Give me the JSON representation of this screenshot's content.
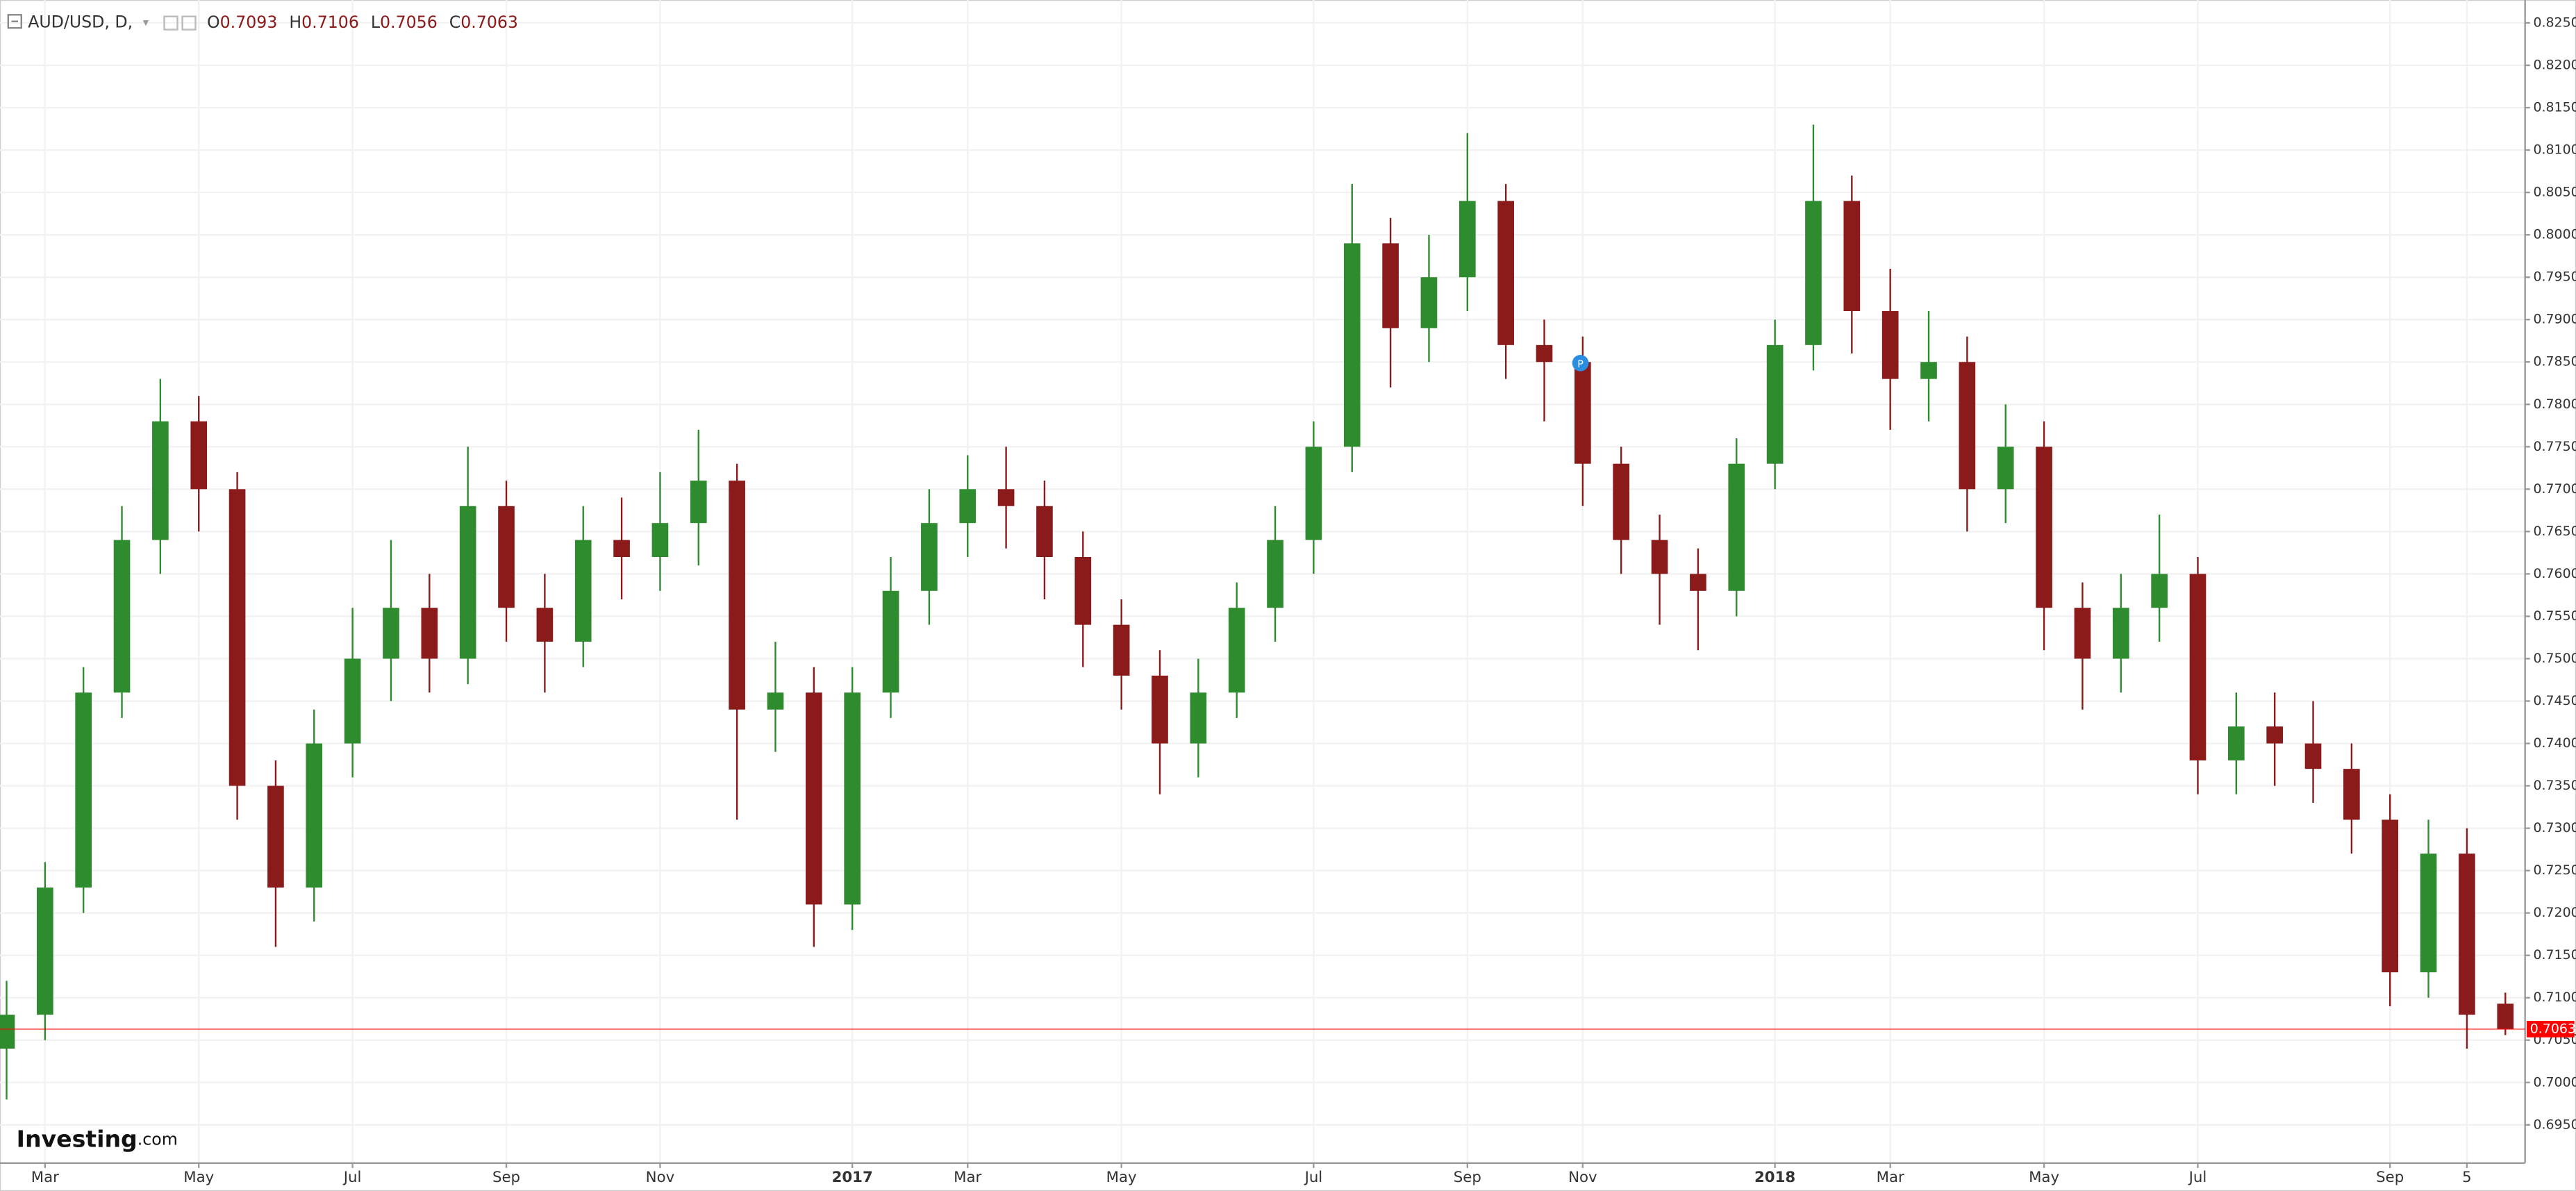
{
  "chart_data": {
    "type": "candlestick",
    "header": {
      "symbol": "AUD/USD, D,",
      "open_label": "O",
      "open": 0.7093,
      "high_label": "H",
      "high": 0.7106,
      "low_label": "L",
      "low": 0.7056,
      "close_label": "C",
      "close": 0.7063
    },
    "logo": {
      "brand": "Investing",
      ".com": ".com"
    },
    "last_price": 0.7063,
    "last_price_color": "#ff0000",
    "up_color": "#2e8b2e",
    "down_color": "#8b1a1a",
    "grid": true,
    "categories": [
      null,
      "Mar",
      null,
      null,
      null,
      "May",
      null,
      null,
      null,
      "Jul",
      null,
      null,
      null,
      "Sep",
      null,
      null,
      null,
      "Nov",
      null,
      null,
      null,
      null,
      "2017",
      null,
      null,
      "Mar",
      null,
      null,
      null,
      "May",
      null,
      null,
      null,
      null,
      "Jul",
      null,
      null,
      null,
      "Sep",
      null,
      null,
      "Nov",
      null,
      null,
      null,
      null,
      "2018",
      null,
      null,
      "Mar",
      null,
      null,
      null,
      "May",
      null,
      null,
      null,
      "Jul",
      null,
      null,
      null,
      null,
      "Sep",
      null,
      "5",
      null
    ],
    "open": [
      0.704,
      0.708,
      0.723,
      0.746,
      0.764,
      0.778,
      0.77,
      0.735,
      0.723,
      0.74,
      0.75,
      0.756,
      0.75,
      0.768,
      0.756,
      0.752,
      0.764,
      0.762,
      0.766,
      0.771,
      0.744,
      0.746,
      0.721,
      0.746,
      0.758,
      0.766,
      0.77,
      0.768,
      0.762,
      0.754,
      0.748,
      0.74,
      0.746,
      0.756,
      0.764,
      0.775,
      0.799,
      0.789,
      0.795,
      0.804,
      0.787,
      0.785,
      0.773,
      0.764,
      0.76,
      0.758,
      0.773,
      0.787,
      0.804,
      0.791,
      0.783,
      0.785,
      0.77,
      0.775,
      0.756,
      0.75,
      0.756,
      0.76,
      0.738,
      0.742,
      0.74,
      0.737,
      0.731,
      0.713,
      0.727,
      0.7093
    ],
    "high": [
      0.712,
      0.726,
      0.749,
      0.768,
      0.783,
      0.781,
      0.772,
      0.738,
      0.744,
      0.756,
      0.764,
      0.76,
      0.775,
      0.771,
      0.76,
      0.768,
      0.769,
      0.772,
      0.777,
      0.773,
      0.752,
      0.749,
      0.749,
      0.762,
      0.77,
      0.774,
      0.775,
      0.771,
      0.765,
      0.757,
      0.751,
      0.75,
      0.759,
      0.768,
      0.778,
      0.806,
      0.802,
      0.8,
      0.812,
      0.806,
      0.79,
      0.788,
      0.775,
      0.767,
      0.763,
      0.776,
      0.79,
      0.813,
      0.807,
      0.796,
      0.791,
      0.788,
      0.78,
      0.778,
      0.759,
      0.76,
      0.767,
      0.762,
      0.746,
      0.746,
      0.745,
      0.74,
      0.734,
      0.731,
      0.73,
      0.7106
    ],
    "low": [
      0.698,
      0.705,
      0.72,
      0.743,
      0.76,
      0.765,
      0.731,
      0.716,
      0.719,
      0.736,
      0.745,
      0.746,
      0.747,
      0.752,
      0.746,
      0.749,
      0.757,
      0.758,
      0.761,
      0.731,
      0.739,
      0.716,
      0.718,
      0.743,
      0.754,
      0.762,
      0.763,
      0.757,
      0.749,
      0.744,
      0.734,
      0.736,
      0.743,
      0.752,
      0.76,
      0.772,
      0.782,
      0.785,
      0.791,
      0.783,
      0.778,
      0.768,
      0.76,
      0.754,
      0.751,
      0.755,
      0.77,
      0.784,
      0.786,
      0.777,
      0.778,
      0.765,
      0.766,
      0.751,
      0.744,
      0.746,
      0.752,
      0.734,
      0.734,
      0.735,
      0.733,
      0.727,
      0.709,
      0.71,
      0.704,
      0.7056
    ],
    "close": [
      0.708,
      0.723,
      0.746,
      0.764,
      0.778,
      0.77,
      0.735,
      0.723,
      0.74,
      0.75,
      0.756,
      0.75,
      0.768,
      0.756,
      0.752,
      0.764,
      0.762,
      0.766,
      0.771,
      0.744,
      0.746,
      0.721,
      0.746,
      0.758,
      0.766,
      0.77,
      0.768,
      0.762,
      0.754,
      0.748,
      0.74,
      0.746,
      0.756,
      0.764,
      0.775,
      0.799,
      0.789,
      0.795,
      0.804,
      0.787,
      0.785,
      0.773,
      0.764,
      0.76,
      0.758,
      0.773,
      0.787,
      0.804,
      0.791,
      0.783,
      0.785,
      0.77,
      0.775,
      0.756,
      0.75,
      0.756,
      0.76,
      0.738,
      0.742,
      0.74,
      0.737,
      0.731,
      0.713,
      0.727,
      0.708,
      0.7063
    ],
    "ylim": [
      0.6905,
      0.8277
    ],
    "yticks": [
      {
        "value": 0.695,
        "label": "0.6950"
      },
      {
        "value": 0.7,
        "label": "0.7000"
      },
      {
        "value": 0.705,
        "label": "0.7050"
      },
      {
        "value": 0.71,
        "label": "0.7100"
      },
      {
        "value": 0.715,
        "label": "0.7150"
      },
      {
        "value": 0.72,
        "label": "0.7200"
      },
      {
        "value": 0.725,
        "label": "0.7250"
      },
      {
        "value": 0.73,
        "label": "0.7300"
      },
      {
        "value": 0.735,
        "label": "0.7350"
      },
      {
        "value": 0.74,
        "label": "0.7400"
      },
      {
        "value": 0.745,
        "label": "0.7450"
      },
      {
        "value": 0.75,
        "label": "0.7500"
      },
      {
        "value": 0.755,
        "label": "0.7550"
      },
      {
        "value": 0.76,
        "label": "0.7600"
      },
      {
        "value": 0.765,
        "label": "0.7650"
      },
      {
        "value": 0.77,
        "label": "0.7700"
      },
      {
        "value": 0.775,
        "label": "0.7750"
      },
      {
        "value": 0.78,
        "label": "0.7800"
      },
      {
        "value": 0.785,
        "label": "0.7850"
      },
      {
        "value": 0.79,
        "label": "0.7900"
      },
      {
        "value": 0.795,
        "label": "0.7950"
      },
      {
        "value": 0.8,
        "label": "0.8000"
      },
      {
        "value": 0.805,
        "label": "0.8050"
      },
      {
        "value": 0.81,
        "label": "0.8100"
      },
      {
        "value": 0.815,
        "label": "0.8150"
      },
      {
        "value": 0.82,
        "label": "0.8200"
      },
      {
        "value": 0.825,
        "label": "0.8250"
      }
    ]
  }
}
